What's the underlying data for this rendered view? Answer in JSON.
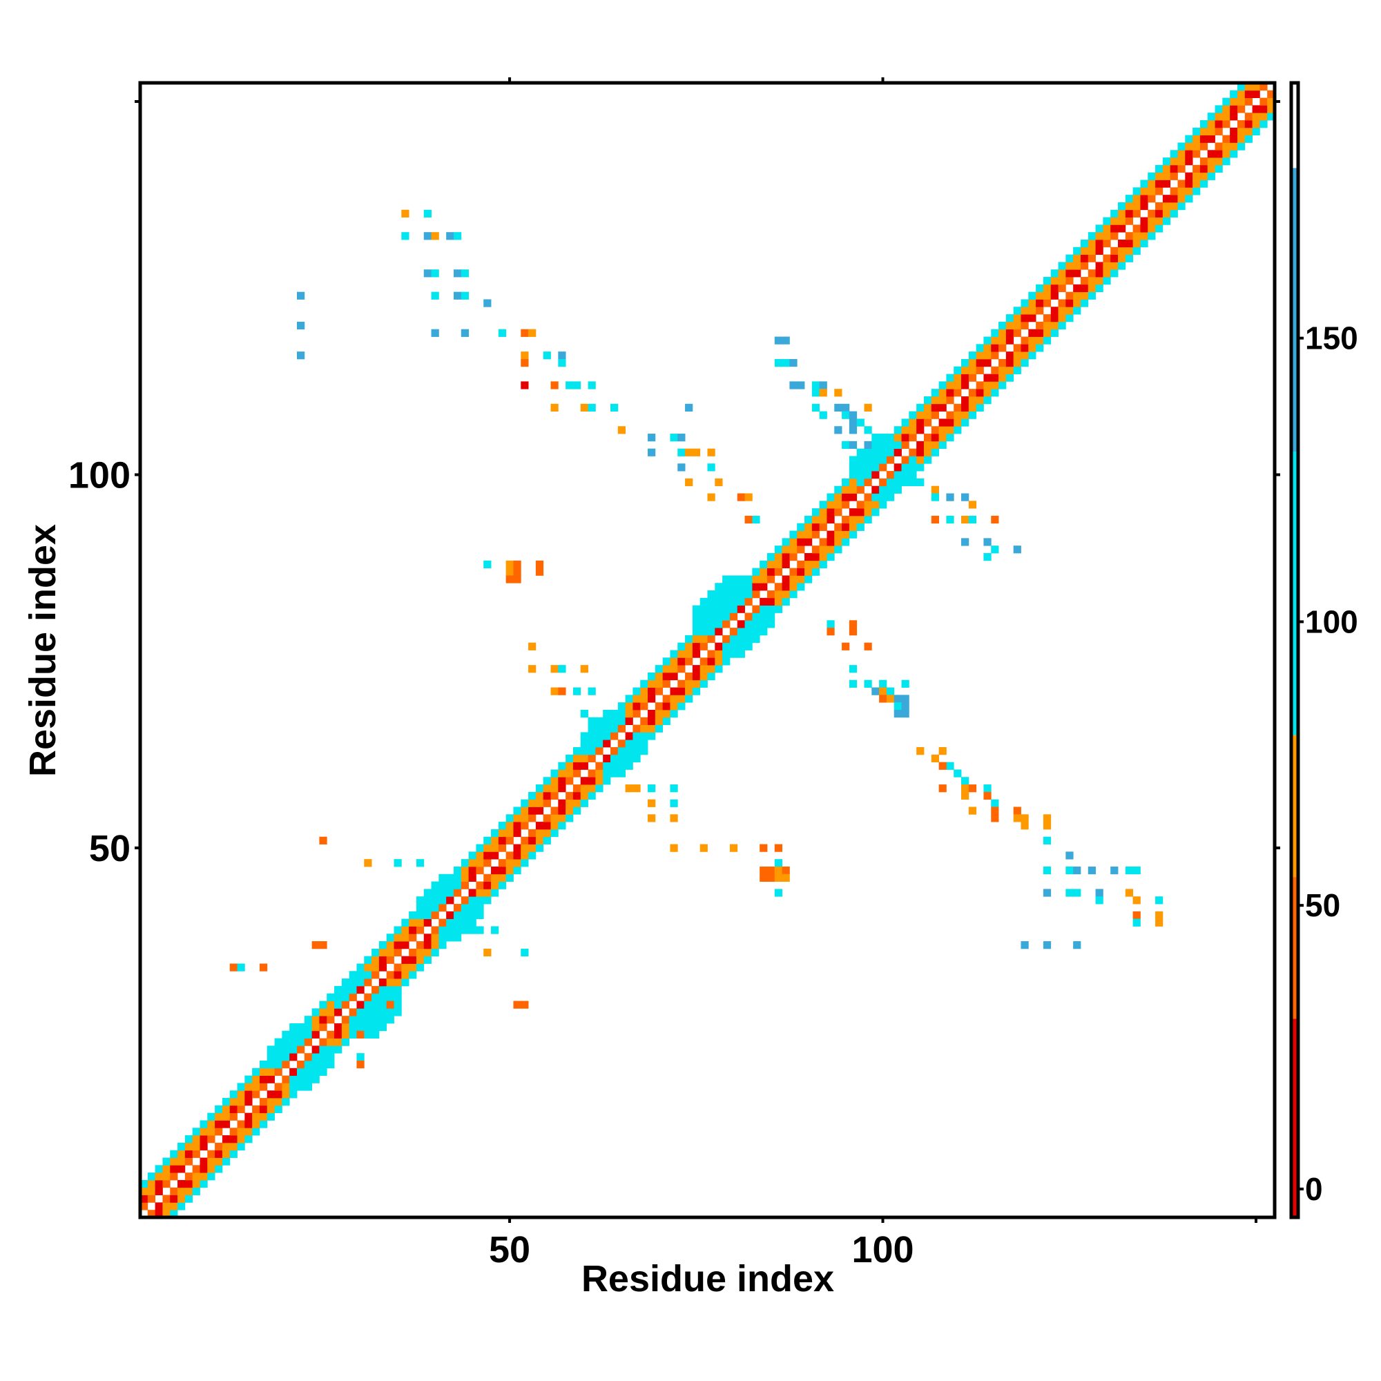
{
  "chart_data": {
    "type": "heatmap",
    "title": "",
    "xlabel": "Residue index",
    "ylabel": "Residue index",
    "xlim": [
      0.5,
      152.5
    ],
    "ylim": [
      0.5,
      152.5
    ],
    "x_ticks": [
      50,
      100,
      150
    ],
    "x_tick_labels": [
      "50",
      "100",
      ""
    ],
    "y_ticks": [
      50,
      100,
      150
    ],
    "y_tick_labels": [
      "50",
      "100",
      ""
    ],
    "top_ticks": [
      50,
      100
    ],
    "right_ticks": [
      50,
      100,
      150
    ],
    "grid": false,
    "legend": "colorbar-right",
    "colorbar": {
      "range": [
        -5,
        195
      ],
      "ticks": [
        0,
        50,
        100,
        150
      ],
      "tick_labels": [
        "0",
        "50",
        "100",
        "150"
      ],
      "segments": [
        {
          "from": -5,
          "to": 30,
          "color": "#e60000"
        },
        {
          "from": 30,
          "to": 55,
          "color": "#ff6600"
        },
        {
          "from": 55,
          "to": 80,
          "color": "#ff9900"
        },
        {
          "from": 80,
          "to": 130,
          "color": "#00e5ee"
        },
        {
          "from": 130,
          "to": 180,
          "color": "#3aa8d8"
        },
        {
          "from": 180,
          "to": 195,
          "color": "#ffffff"
        }
      ]
    },
    "colors": {
      "red": "#e60000",
      "orange_red": "#ff6600",
      "orange": "#ff9900",
      "cyan": "#00e5ee",
      "blue": "#3aa8d8",
      "steel": "#4a86b8"
    },
    "diagonal_band": {
      "half_width": 4,
      "pattern_offsets": {
        "0": "red",
        "1": "orange_red",
        "2": "red",
        "3": "orange",
        "4": "cyan"
      }
    },
    "blobs": [
      {
        "x": 22,
        "y": 22,
        "r": 4,
        "color": "cyan"
      },
      {
        "x": 31,
        "y": 29,
        "r": 4,
        "color": "cyan"
      },
      {
        "x": 42,
        "y": 42,
        "r": 4,
        "color": "cyan"
      },
      {
        "x": 64,
        "y": 64,
        "r": 4,
        "color": "cyan"
      },
      {
        "x": 80,
        "y": 81,
        "r": 5,
        "color": "cyan"
      },
      {
        "x": 100,
        "y": 101,
        "r": 4,
        "color": "cyan"
      }
    ],
    "contacts": [
      {
        "x": 36,
        "y": 135,
        "c": "orange"
      },
      {
        "x": 39,
        "y": 135,
        "c": "cyan"
      },
      {
        "x": 36,
        "y": 132,
        "c": "cyan"
      },
      {
        "x": 39,
        "y": 132,
        "c": "blue"
      },
      {
        "x": 40,
        "y": 132,
        "c": "orange"
      },
      {
        "x": 42,
        "y": 132,
        "c": "blue"
      },
      {
        "x": 43,
        "y": 132,
        "c": "cyan"
      },
      {
        "x": 39,
        "y": 127,
        "c": "blue"
      },
      {
        "x": 40,
        "y": 127,
        "c": "cyan"
      },
      {
        "x": 43,
        "y": 127,
        "c": "blue"
      },
      {
        "x": 44,
        "y": 127,
        "c": "cyan"
      },
      {
        "x": 40,
        "y": 124,
        "c": "cyan"
      },
      {
        "x": 43,
        "y": 124,
        "c": "blue"
      },
      {
        "x": 44,
        "y": 124,
        "c": "cyan"
      },
      {
        "x": 47,
        "y": 123,
        "c": "blue"
      },
      {
        "x": 22,
        "y": 124,
        "c": "blue"
      },
      {
        "x": 22,
        "y": 120,
        "c": "blue"
      },
      {
        "x": 22,
        "y": 116,
        "c": "blue"
      },
      {
        "x": 40,
        "y": 119,
        "c": "blue"
      },
      {
        "x": 44,
        "y": 119,
        "c": "blue"
      },
      {
        "x": 49,
        "y": 119,
        "c": "cyan"
      },
      {
        "x": 52,
        "y": 119,
        "c": "orange_red"
      },
      {
        "x": 53,
        "y": 119,
        "c": "orange"
      },
      {
        "x": 52,
        "y": 116,
        "c": "orange"
      },
      {
        "x": 55,
        "y": 116,
        "c": "cyan"
      },
      {
        "x": 57,
        "y": 116,
        "c": "blue"
      },
      {
        "x": 52,
        "y": 115,
        "c": "orange_red"
      },
      {
        "x": 57,
        "y": 115,
        "c": "cyan"
      },
      {
        "x": 52,
        "y": 112,
        "c": "red"
      },
      {
        "x": 56,
        "y": 112,
        "c": "orange_red"
      },
      {
        "x": 58,
        "y": 112,
        "c": "cyan"
      },
      {
        "x": 59,
        "y": 112,
        "c": "cyan"
      },
      {
        "x": 61,
        "y": 112,
        "c": "cyan"
      },
      {
        "x": 56,
        "y": 109,
        "c": "orange"
      },
      {
        "x": 60,
        "y": 109,
        "c": "orange"
      },
      {
        "x": 61,
        "y": 109,
        "c": "cyan"
      },
      {
        "x": 64,
        "y": 109,
        "c": "cyan"
      },
      {
        "x": 74,
        "y": 109,
        "c": "blue"
      },
      {
        "x": 65,
        "y": 106,
        "c": "orange"
      },
      {
        "x": 69,
        "y": 105,
        "c": "blue"
      },
      {
        "x": 72,
        "y": 105,
        "c": "cyan"
      },
      {
        "x": 73,
        "y": 105,
        "c": "blue"
      },
      {
        "x": 69,
        "y": 103,
        "c": "blue"
      },
      {
        "x": 73,
        "y": 103,
        "c": "cyan"
      },
      {
        "x": 74,
        "y": 103,
        "c": "orange"
      },
      {
        "x": 75,
        "y": 103,
        "c": "orange"
      },
      {
        "x": 77,
        "y": 103,
        "c": "orange"
      },
      {
        "x": 73,
        "y": 101,
        "c": "blue"
      },
      {
        "x": 77,
        "y": 101,
        "c": "cyan"
      },
      {
        "x": 74,
        "y": 99,
        "c": "orange"
      },
      {
        "x": 78,
        "y": 99,
        "c": "orange"
      },
      {
        "x": 77,
        "y": 97,
        "c": "orange"
      },
      {
        "x": 81,
        "y": 97,
        "c": "orange_red"
      },
      {
        "x": 82,
        "y": 97,
        "c": "orange"
      },
      {
        "x": 82,
        "y": 94,
        "c": "orange_red"
      },
      {
        "x": 83,
        "y": 94,
        "c": "cyan"
      },
      {
        "x": 47,
        "y": 88,
        "c": "cyan"
      },
      {
        "x": 50,
        "y": 88,
        "c": "orange"
      },
      {
        "x": 51,
        "y": 88,
        "c": "orange_red"
      },
      {
        "x": 54,
        "y": 88,
        "c": "orange_red"
      },
      {
        "x": 50,
        "y": 87,
        "c": "orange"
      },
      {
        "x": 51,
        "y": 87,
        "c": "orange_red"
      },
      {
        "x": 54,
        "y": 87,
        "c": "orange_red"
      },
      {
        "x": 50,
        "y": 86,
        "c": "orange_red"
      },
      {
        "x": 51,
        "y": 86,
        "c": "orange_red"
      },
      {
        "x": 53,
        "y": 77,
        "c": "orange"
      },
      {
        "x": 53,
        "y": 74,
        "c": "orange"
      },
      {
        "x": 56,
        "y": 74,
        "c": "orange"
      },
      {
        "x": 57,
        "y": 74,
        "c": "cyan"
      },
      {
        "x": 60,
        "y": 74,
        "c": "orange"
      },
      {
        "x": 56,
        "y": 71,
        "c": "orange"
      },
      {
        "x": 57,
        "y": 71,
        "c": "orange_red"
      },
      {
        "x": 59,
        "y": 71,
        "c": "cyan"
      },
      {
        "x": 61,
        "y": 71,
        "c": "cyan"
      },
      {
        "x": 60,
        "y": 68,
        "c": "cyan"
      },
      {
        "x": 61,
        "y": 67,
        "c": "cyan"
      },
      {
        "x": 63,
        "y": 67,
        "c": "cyan"
      },
      {
        "x": 66,
        "y": 58,
        "c": "orange"
      },
      {
        "x": 67,
        "y": 58,
        "c": "orange"
      },
      {
        "x": 69,
        "y": 58,
        "c": "cyan"
      },
      {
        "x": 72,
        "y": 58,
        "c": "cyan"
      },
      {
        "x": 69,
        "y": 56,
        "c": "orange"
      },
      {
        "x": 72,
        "y": 56,
        "c": "cyan"
      },
      {
        "x": 69,
        "y": 54,
        "c": "orange"
      },
      {
        "x": 72,
        "y": 54,
        "c": "orange"
      },
      {
        "x": 72,
        "y": 50,
        "c": "orange"
      },
      {
        "x": 76,
        "y": 50,
        "c": "orange"
      },
      {
        "x": 80,
        "y": 50,
        "c": "orange"
      },
      {
        "x": 84,
        "y": 50,
        "c": "orange_red"
      },
      {
        "x": 86,
        "y": 50,
        "c": "orange_red"
      },
      {
        "x": 86,
        "y": 48,
        "c": "cyan"
      },
      {
        "x": 84,
        "y": 47,
        "c": "orange_red"
      },
      {
        "x": 85,
        "y": 47,
        "c": "orange_red"
      },
      {
        "x": 86,
        "y": 47,
        "c": "orange"
      },
      {
        "x": 87,
        "y": 47,
        "c": "orange_red"
      },
      {
        "x": 84,
        "y": 46,
        "c": "orange_red"
      },
      {
        "x": 85,
        "y": 46,
        "c": "orange_red"
      },
      {
        "x": 86,
        "y": 46,
        "c": "orange"
      },
      {
        "x": 87,
        "y": 46,
        "c": "orange"
      },
      {
        "x": 86,
        "y": 44,
        "c": "cyan"
      },
      {
        "x": 25,
        "y": 51,
        "c": "orange_red"
      },
      {
        "x": 31,
        "y": 48,
        "c": "orange"
      },
      {
        "x": 35,
        "y": 48,
        "c": "cyan"
      },
      {
        "x": 38,
        "y": 48,
        "c": "cyan"
      },
      {
        "x": 13,
        "y": 34,
        "c": "orange_red"
      },
      {
        "x": 14,
        "y": 34,
        "c": "cyan"
      },
      {
        "x": 17,
        "y": 34,
        "c": "orange_red"
      },
      {
        "x": 24,
        "y": 37,
        "c": "orange_red"
      },
      {
        "x": 25,
        "y": 37,
        "c": "orange_red"
      },
      {
        "x": 45,
        "y": 39,
        "c": "cyan"
      },
      {
        "x": 46,
        "y": 39,
        "c": "cyan"
      },
      {
        "x": 48,
        "y": 39,
        "c": "cyan"
      },
      {
        "x": 47,
        "y": 36,
        "c": "orange"
      },
      {
        "x": 52,
        "y": 36,
        "c": "cyan"
      },
      {
        "x": 34,
        "y": 29,
        "c": "orange_red"
      },
      {
        "x": 51,
        "y": 29,
        "c": "orange_red"
      },
      {
        "x": 52,
        "y": 29,
        "c": "orange_red"
      },
      {
        "x": 30,
        "y": 25,
        "c": "orange_red"
      },
      {
        "x": 30,
        "y": 22,
        "c": "cyan"
      },
      {
        "x": 30,
        "y": 21,
        "c": "orange_red"
      },
      {
        "x": 93,
        "y": 80,
        "c": "cyan"
      },
      {
        "x": 96,
        "y": 80,
        "c": "orange_red"
      },
      {
        "x": 93,
        "y": 79,
        "c": "orange_red"
      },
      {
        "x": 96,
        "y": 79,
        "c": "orange_red"
      },
      {
        "x": 95,
        "y": 77,
        "c": "orange_red"
      },
      {
        "x": 98,
        "y": 77,
        "c": "orange_red"
      },
      {
        "x": 96,
        "y": 74,
        "c": "cyan"
      },
      {
        "x": 96,
        "y": 72,
        "c": "cyan"
      },
      {
        "x": 98,
        "y": 72,
        "c": "cyan"
      },
      {
        "x": 100,
        "y": 72,
        "c": "cyan"
      },
      {
        "x": 103,
        "y": 72,
        "c": "cyan"
      },
      {
        "x": 99,
        "y": 71,
        "c": "blue"
      },
      {
        "x": 100,
        "y": 71,
        "c": "orange"
      },
      {
        "x": 101,
        "y": 71,
        "c": "cyan"
      },
      {
        "x": 100,
        "y": 70,
        "c": "orange_red"
      },
      {
        "x": 101,
        "y": 70,
        "c": "orange"
      },
      {
        "x": 102,
        "y": 70,
        "c": "blue"
      },
      {
        "x": 103,
        "y": 70,
        "c": "blue"
      },
      {
        "x": 102,
        "y": 69,
        "c": "cyan"
      },
      {
        "x": 103,
        "y": 69,
        "c": "blue"
      },
      {
        "x": 102,
        "y": 68,
        "c": "blue"
      },
      {
        "x": 103,
        "y": 68,
        "c": "blue"
      },
      {
        "x": 105,
        "y": 63,
        "c": "orange"
      },
      {
        "x": 108,
        "y": 63,
        "c": "orange"
      },
      {
        "x": 107,
        "y": 62,
        "c": "orange"
      },
      {
        "x": 109,
        "y": 61,
        "c": "cyan"
      },
      {
        "x": 108,
        "y": 61,
        "c": "orange_red"
      },
      {
        "x": 110,
        "y": 60,
        "c": "cyan"
      },
      {
        "x": 111,
        "y": 59,
        "c": "cyan"
      },
      {
        "x": 108,
        "y": 58,
        "c": "orange_red"
      },
      {
        "x": 111,
        "y": 58,
        "c": "orange"
      },
      {
        "x": 112,
        "y": 58,
        "c": "orange_red"
      },
      {
        "x": 114,
        "y": 58,
        "c": "cyan"
      },
      {
        "x": 111,
        "y": 57,
        "c": "orange"
      },
      {
        "x": 114,
        "y": 57,
        "c": "orange_red"
      },
      {
        "x": 115,
        "y": 56,
        "c": "cyan"
      },
      {
        "x": 112,
        "y": 55,
        "c": "orange"
      },
      {
        "x": 115,
        "y": 55,
        "c": "orange_red"
      },
      {
        "x": 118,
        "y": 55,
        "c": "orange_red"
      },
      {
        "x": 115,
        "y": 54,
        "c": "orange_red"
      },
      {
        "x": 118,
        "y": 54,
        "c": "orange"
      },
      {
        "x": 119,
        "y": 54,
        "c": "orange"
      },
      {
        "x": 122,
        "y": 54,
        "c": "orange"
      },
      {
        "x": 119,
        "y": 53,
        "c": "orange"
      },
      {
        "x": 122,
        "y": 53,
        "c": "orange"
      },
      {
        "x": 122,
        "y": 51,
        "c": "cyan"
      },
      {
        "x": 125,
        "y": 49,
        "c": "blue"
      },
      {
        "x": 122,
        "y": 47,
        "c": "cyan"
      },
      {
        "x": 125,
        "y": 47,
        "c": "cyan"
      },
      {
        "x": 126,
        "y": 47,
        "c": "blue"
      },
      {
        "x": 128,
        "y": 47,
        "c": "blue"
      },
      {
        "x": 131,
        "y": 47,
        "c": "blue"
      },
      {
        "x": 133,
        "y": 47,
        "c": "cyan"
      },
      {
        "x": 134,
        "y": 47,
        "c": "cyan"
      },
      {
        "x": 122,
        "y": 44,
        "c": "blue"
      },
      {
        "x": 125,
        "y": 44,
        "c": "cyan"
      },
      {
        "x": 126,
        "y": 44,
        "c": "cyan"
      },
      {
        "x": 129,
        "y": 44,
        "c": "blue"
      },
      {
        "x": 133,
        "y": 44,
        "c": "orange"
      },
      {
        "x": 129,
        "y": 43,
        "c": "cyan"
      },
      {
        "x": 134,
        "y": 43,
        "c": "orange"
      },
      {
        "x": 137,
        "y": 43,
        "c": "cyan"
      },
      {
        "x": 134,
        "y": 41,
        "c": "orange_red"
      },
      {
        "x": 137,
        "y": 41,
        "c": "orange"
      },
      {
        "x": 134,
        "y": 40,
        "c": "cyan"
      },
      {
        "x": 137,
        "y": 40,
        "c": "orange"
      },
      {
        "x": 119,
        "y": 37,
        "c": "blue"
      },
      {
        "x": 122,
        "y": 37,
        "c": "blue"
      },
      {
        "x": 126,
        "y": 37,
        "c": "blue"
      },
      {
        "x": 86,
        "y": 118,
        "c": "blue"
      },
      {
        "x": 87,
        "y": 118,
        "c": "blue"
      },
      {
        "x": 86,
        "y": 115,
        "c": "cyan"
      },
      {
        "x": 87,
        "y": 115,
        "c": "cyan"
      },
      {
        "x": 88,
        "y": 115,
        "c": "blue"
      },
      {
        "x": 88,
        "y": 112,
        "c": "blue"
      },
      {
        "x": 89,
        "y": 112,
        "c": "blue"
      },
      {
        "x": 91,
        "y": 112,
        "c": "cyan"
      },
      {
        "x": 92,
        "y": 112,
        "c": "blue"
      },
      {
        "x": 91,
        "y": 111,
        "c": "cyan"
      },
      {
        "x": 92,
        "y": 111,
        "c": "orange"
      },
      {
        "x": 94,
        "y": 111,
        "c": "orange"
      },
      {
        "x": 91,
        "y": 109,
        "c": "cyan"
      },
      {
        "x": 94,
        "y": 109,
        "c": "blue"
      },
      {
        "x": 95,
        "y": 109,
        "c": "blue"
      },
      {
        "x": 98,
        "y": 109,
        "c": "orange"
      },
      {
        "x": 92,
        "y": 108,
        "c": "cyan"
      },
      {
        "x": 95,
        "y": 108,
        "c": "cyan"
      },
      {
        "x": 96,
        "y": 108,
        "c": "blue"
      },
      {
        "x": 96,
        "y": 107,
        "c": "blue"
      },
      {
        "x": 97,
        "y": 107,
        "c": "cyan"
      },
      {
        "x": 94,
        "y": 106,
        "c": "blue"
      },
      {
        "x": 96,
        "y": 106,
        "c": "blue"
      },
      {
        "x": 98,
        "y": 106,
        "c": "cyan"
      },
      {
        "x": 95,
        "y": 104,
        "c": "cyan"
      },
      {
        "x": 96,
        "y": 104,
        "c": "blue"
      },
      {
        "x": 98,
        "y": 104,
        "c": "blue"
      },
      {
        "x": 104,
        "y": 99,
        "c": "cyan"
      },
      {
        "x": 105,
        "y": 99,
        "c": "cyan"
      },
      {
        "x": 107,
        "y": 98,
        "c": "orange"
      },
      {
        "x": 107,
        "y": 97,
        "c": "cyan"
      },
      {
        "x": 109,
        "y": 97,
        "c": "blue"
      },
      {
        "x": 111,
        "y": 97,
        "c": "blue"
      },
      {
        "x": 112,
        "y": 96,
        "c": "orange"
      },
      {
        "x": 107,
        "y": 94,
        "c": "orange_red"
      },
      {
        "x": 109,
        "y": 94,
        "c": "cyan"
      },
      {
        "x": 111,
        "y": 94,
        "c": "orange"
      },
      {
        "x": 112,
        "y": 94,
        "c": "cyan"
      },
      {
        "x": 115,
        "y": 94,
        "c": "orange_red"
      },
      {
        "x": 111,
        "y": 91,
        "c": "blue"
      },
      {
        "x": 114,
        "y": 91,
        "c": "blue"
      },
      {
        "x": 115,
        "y": 90,
        "c": "cyan"
      },
      {
        "x": 118,
        "y": 90,
        "c": "blue"
      },
      {
        "x": 114,
        "y": 89,
        "c": "cyan"
      }
    ]
  }
}
